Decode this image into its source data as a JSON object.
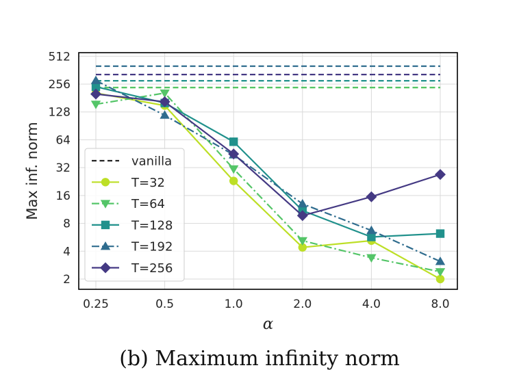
{
  "caption": "(b) Maximum infinity norm",
  "chart_data": {
    "type": "line",
    "title": "",
    "xlabel": "α",
    "ylabel": "Max inf. norm",
    "x_scale": "categorical",
    "y_scale": "log2",
    "categories": [
      "0.25",
      "0.5",
      "1.0",
      "2.0",
      "4.0",
      "8.0"
    ],
    "y_ticks": [
      2,
      4,
      8,
      16,
      32,
      64,
      128,
      256,
      512
    ],
    "y_tick_labels": [
      "2",
      "4",
      "8",
      "16",
      "32",
      "64",
      "128",
      "256",
      "512"
    ],
    "ylim": [
      1.55,
      560
    ],
    "grid": true,
    "legend_position": "center-left",
    "vanilla_label": "vanilla",
    "vanilla_color": "#222222",
    "series": [
      {
        "name": "T=32",
        "color": "#bddf26",
        "marker": "circle",
        "dash": "solid",
        "values": [
          205,
          150,
          23,
          4.4,
          5.2,
          2.0
        ],
        "vanilla": 235
      },
      {
        "name": "T=64",
        "color": "#54c568",
        "marker": "triangle-down",
        "dash": "dashdot",
        "values": [
          155,
          205,
          31,
          5.2,
          3.4,
          2.4
        ],
        "vanilla": 235
      },
      {
        "name": "T=128",
        "color": "#21918c",
        "marker": "square",
        "dash": "solid",
        "values": [
          240,
          160,
          61,
          11,
          5.7,
          6.2
        ],
        "vanilla": 278
      },
      {
        "name": "T=192",
        "color": "#2f6c8e",
        "marker": "triangle-up",
        "dash": "dashdot",
        "values": [
          280,
          118,
          44,
          13,
          6.7,
          3.1
        ],
        "vanilla": 400
      },
      {
        "name": "T=256",
        "color": "#443983",
        "marker": "diamond",
        "dash": "solid",
        "values": [
          200,
          165,
          45,
          9.7,
          15.5,
          27
        ],
        "vanilla": 325
      }
    ]
  }
}
